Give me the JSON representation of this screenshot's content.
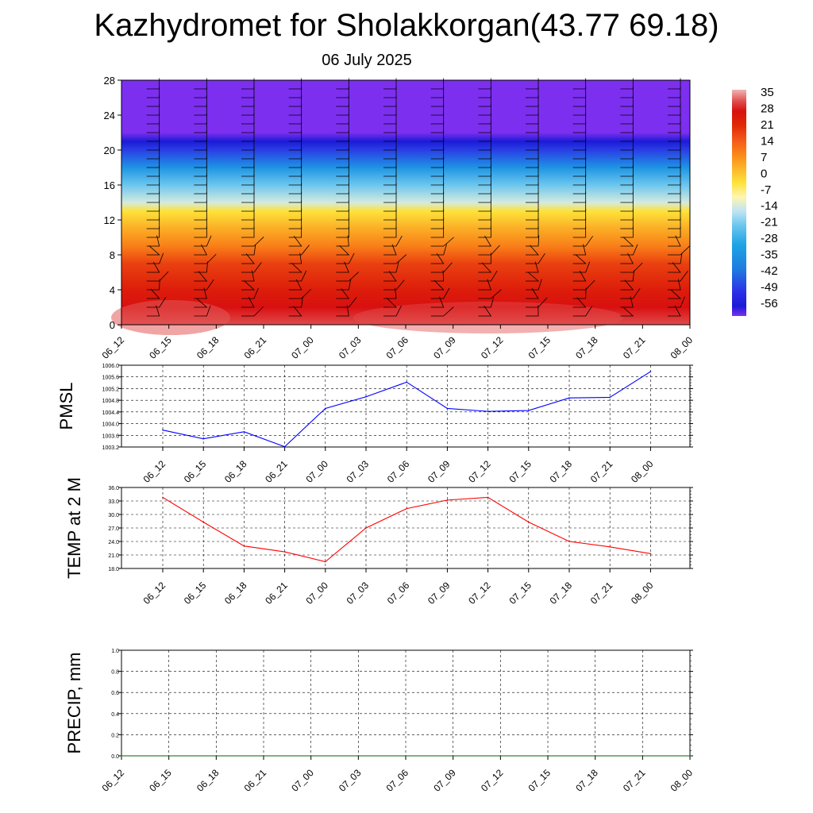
{
  "title": "Kazhydromet for Sholakkorgan(43.77 69.18)",
  "subtitle": "06 July 2025",
  "time_labels": [
    "06_12",
    "06_15",
    "06_18",
    "06_21",
    "07_00",
    "07_03",
    "07_06",
    "07_09",
    "07_12",
    "07_15",
    "07_18",
    "07_21",
    "08_00"
  ],
  "chart_data": [
    {
      "type": "heatmap",
      "name": "temperature-height-section",
      "y_ticks": [
        0,
        4,
        8,
        12,
        16,
        20,
        24,
        28
      ],
      "ylim": [
        0,
        28
      ],
      "colorbar_labels": [
        "35",
        "28",
        "21",
        "14",
        "7",
        "0",
        "-7",
        "-14",
        "-21",
        "-28",
        "-35",
        "-42",
        "-49",
        "-56"
      ],
      "colormap": [
        {
          "v": 35,
          "c": "#f2b3b3"
        },
        {
          "v": 30,
          "c": "#e04b4b"
        },
        {
          "v": 26,
          "c": "#d91010"
        },
        {
          "v": 20,
          "c": "#e02a05"
        },
        {
          "v": 14,
          "c": "#f4581a"
        },
        {
          "v": 7,
          "c": "#fb8e17"
        },
        {
          "v": 2,
          "c": "#fbb52a"
        },
        {
          "v": -4,
          "c": "#fee239"
        },
        {
          "v": -10,
          "c": "#fff5b0"
        },
        {
          "v": -16,
          "c": "#bfe4f5"
        },
        {
          "v": -22,
          "c": "#6cc6ee"
        },
        {
          "v": -30,
          "c": "#1ea4e5"
        },
        {
          "v": -40,
          "c": "#1d7de0"
        },
        {
          "v": -50,
          "c": "#2d2ee8"
        },
        {
          "v": -56,
          "c": "#1b1bd6"
        },
        {
          "v": -60,
          "c": "#7d2ff0"
        }
      ],
      "vertical_profile": [
        {
          "h": 0,
          "t": 30
        },
        {
          "h": 2,
          "t": 26
        },
        {
          "h": 4,
          "t": 23
        },
        {
          "h": 7,
          "t": 17
        },
        {
          "h": 9,
          "t": 9
        },
        {
          "h": 11,
          "t": 3
        },
        {
          "h": 13,
          "t": -4
        },
        {
          "h": 14,
          "t": -14
        },
        {
          "h": 16,
          "t": -22
        },
        {
          "h": 18,
          "t": -34
        },
        {
          "h": 20,
          "t": -48
        },
        {
          "h": 21,
          "t": -56
        },
        {
          "h": 22,
          "t": -60
        },
        {
          "h": 28,
          "t": -60
        }
      ]
    },
    {
      "type": "line",
      "name": "PMSL",
      "ylabel": "PMSL",
      "ylim": [
        1003.2,
        1006.0
      ],
      "y_ticks": [
        "1003.2",
        "1003.6",
        "1004.0",
        "1004.4",
        "1004.8",
        "1005.2",
        "1005.6",
        "1006.0"
      ],
      "categories": [
        "06_12",
        "06_15",
        "06_18",
        "06_21",
        "07_00",
        "07_03",
        "07_06",
        "07_09",
        "07_12",
        "07_15",
        "07_18",
        "07_21",
        "08_00"
      ],
      "values": [
        1003.78,
        1003.48,
        1003.72,
        1003.21,
        1004.52,
        1004.92,
        1005.42,
        1004.52,
        1004.42,
        1004.45,
        1004.88,
        1004.9,
        1005.78
      ],
      "color": "#0000ff"
    },
    {
      "type": "line",
      "name": "TEMP at 2 M",
      "ylabel": "TEMP at 2 M",
      "ylim": [
        18.0,
        36.0
      ],
      "y_ticks": [
        "18.0",
        "21.0",
        "24.0",
        "27.0",
        "30.0",
        "33.0",
        "36.0"
      ],
      "categories": [
        "06_12",
        "06_15",
        "06_18",
        "06_21",
        "07_00",
        "07_03",
        "07_06",
        "07_09",
        "07_12",
        "07_15",
        "07_18",
        "07_21",
        "08_00"
      ],
      "values": [
        33.8,
        28.3,
        23.0,
        21.7,
        19.5,
        27.0,
        31.3,
        33.2,
        33.8,
        28.3,
        24.0,
        22.8,
        21.3
      ],
      "color": "#ff0000"
    },
    {
      "type": "line",
      "name": "PRECIP, mm",
      "ylabel": "PRECIP, mm",
      "ylim": [
        0.0,
        1.0
      ],
      "y_ticks": [
        "0.0",
        "0.2",
        "0.4",
        "0.6",
        "0.8",
        "1.0"
      ],
      "categories": [
        "06_12",
        "06_15",
        "06_18",
        "06_21",
        "07_00",
        "07_03",
        "07_06",
        "07_09",
        "07_12",
        "07_15",
        "07_18",
        "07_21",
        "08_00"
      ],
      "values": [
        0,
        0,
        0,
        0,
        0,
        0,
        0,
        0,
        0,
        0,
        0,
        0,
        0
      ],
      "color": "#006400"
    }
  ]
}
